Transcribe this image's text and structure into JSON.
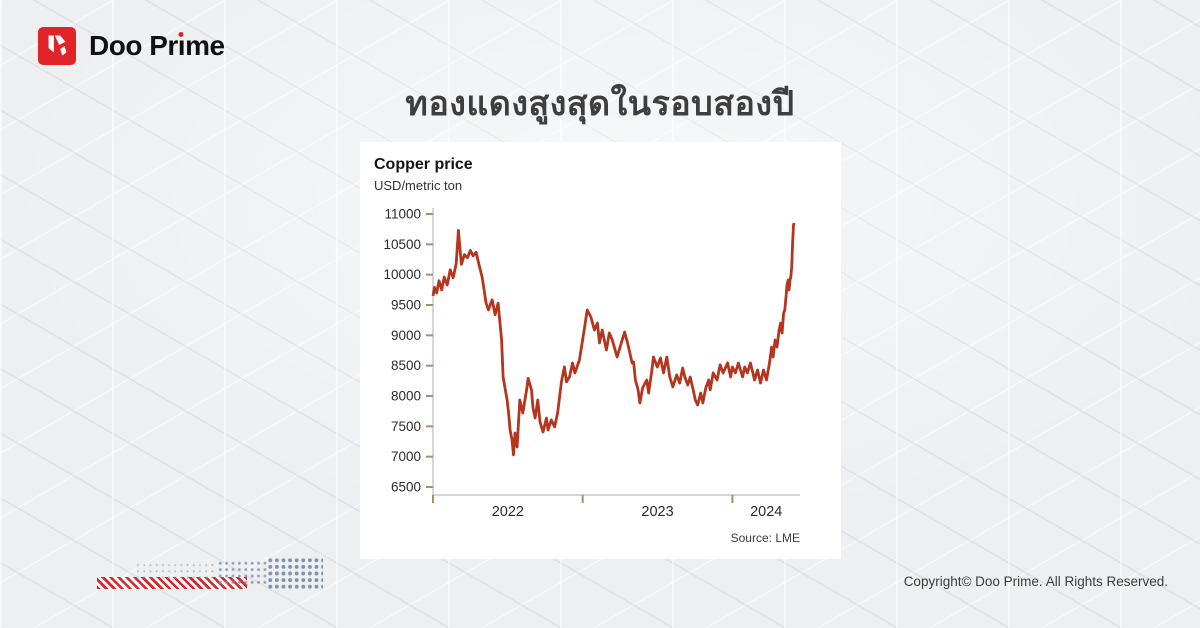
{
  "header": {
    "brand": "Doo Prime",
    "brand_left": "Doo Pr",
    "brand_i": "ı",
    "brand_right": "me",
    "logo_red": "#e02427"
  },
  "title": "ทองแดงสูงสุดในรอบสองปี",
  "footer": {
    "copyright": "Copyright© Doo Prime. All Rights Reserved."
  },
  "chart_data": {
    "type": "line",
    "title": "Copper price",
    "subtitle": "USD/metric ton",
    "source": "Source: LME",
    "legend": null,
    "grid": false,
    "line_color": "#b5351f",
    "axis_color": "#c6c6c6",
    "tick_color": "#b08a67",
    "label_color": "#2b2b2b",
    "xlim": [
      2022.0,
      2024.45
    ],
    "ylim": [
      6500,
      11000
    ],
    "x_ticks": [
      2022,
      2023,
      2024
    ],
    "x_tick_labels": [
      "2022",
      "2023",
      "2024"
    ],
    "y_ticks": [
      11000,
      10500,
      10000,
      9500,
      9000,
      8500,
      8000,
      7500,
      7000,
      6500
    ],
    "series": [
      {
        "name": "LME copper price (USD/metric ton)",
        "points": [
          [
            2022.0,
            9650
          ],
          [
            2022.01,
            9790
          ],
          [
            2022.025,
            9700
          ],
          [
            2022.04,
            9900
          ],
          [
            2022.058,
            9750
          ],
          [
            2022.075,
            9960
          ],
          [
            2022.095,
            9830
          ],
          [
            2022.115,
            10080
          ],
          [
            2022.135,
            9950
          ],
          [
            2022.155,
            10180
          ],
          [
            2022.17,
            10730
          ],
          [
            2022.19,
            10170
          ],
          [
            2022.21,
            10330
          ],
          [
            2022.23,
            10280
          ],
          [
            2022.25,
            10400
          ],
          [
            2022.268,
            10310
          ],
          [
            2022.288,
            10370
          ],
          [
            2022.308,
            10160
          ],
          [
            2022.328,
            9960
          ],
          [
            2022.34,
            9770
          ],
          [
            2022.355,
            9530
          ],
          [
            2022.37,
            9420
          ],
          [
            2022.395,
            9585
          ],
          [
            2022.415,
            9340
          ],
          [
            2022.435,
            9530
          ],
          [
            2022.458,
            8925
          ],
          [
            2022.468,
            8315
          ],
          [
            2022.495,
            7934
          ],
          [
            2022.505,
            7720
          ],
          [
            2022.515,
            7440
          ],
          [
            2022.528,
            7275
          ],
          [
            2022.538,
            7030
          ],
          [
            2022.548,
            7390
          ],
          [
            2022.562,
            7160
          ],
          [
            2022.58,
            7934
          ],
          [
            2022.6,
            7720
          ],
          [
            2022.625,
            8100
          ],
          [
            2022.635,
            8290
          ],
          [
            2022.658,
            8100
          ],
          [
            2022.668,
            7800
          ],
          [
            2022.682,
            7637
          ],
          [
            2022.7,
            7934
          ],
          [
            2022.715,
            7571
          ],
          [
            2022.735,
            7407
          ],
          [
            2022.758,
            7637
          ],
          [
            2022.768,
            7440
          ],
          [
            2022.79,
            7604
          ],
          [
            2022.812,
            7490
          ],
          [
            2022.832,
            7720
          ],
          [
            2022.858,
            8232
          ],
          [
            2022.878,
            8479
          ],
          [
            2022.892,
            8232
          ],
          [
            2022.912,
            8314
          ],
          [
            2022.932,
            8544
          ],
          [
            2022.948,
            8380
          ],
          [
            2022.978,
            8594
          ],
          [
            2023.01,
            9088
          ],
          [
            2023.03,
            9418
          ],
          [
            2023.055,
            9303
          ],
          [
            2023.078,
            9088
          ],
          [
            2023.098,
            9203
          ],
          [
            2023.112,
            8874
          ],
          [
            2023.13,
            9088
          ],
          [
            2023.158,
            8758
          ],
          [
            2023.178,
            9039
          ],
          [
            2023.198,
            8923
          ],
          [
            2023.23,
            8643
          ],
          [
            2023.258,
            8874
          ],
          [
            2023.28,
            9055
          ],
          [
            2023.3,
            8874
          ],
          [
            2023.33,
            8544
          ],
          [
            2023.34,
            8561
          ],
          [
            2023.352,
            8264
          ],
          [
            2023.37,
            8100
          ],
          [
            2023.382,
            7885
          ],
          [
            2023.4,
            8133
          ],
          [
            2023.428,
            8264
          ],
          [
            2023.44,
            8050
          ],
          [
            2023.462,
            8429
          ],
          [
            2023.472,
            8643
          ],
          [
            2023.498,
            8478
          ],
          [
            2023.52,
            8627
          ],
          [
            2023.54,
            8380
          ],
          [
            2023.562,
            8643
          ],
          [
            2023.582,
            8314
          ],
          [
            2023.602,
            8150
          ],
          [
            2023.628,
            8347
          ],
          [
            2023.648,
            8215
          ],
          [
            2023.668,
            8462
          ],
          [
            2023.682,
            8314
          ],
          [
            2023.702,
            8182
          ],
          [
            2023.718,
            8314
          ],
          [
            2023.738,
            8100
          ],
          [
            2023.752,
            7934
          ],
          [
            2023.768,
            7852
          ],
          [
            2023.788,
            8050
          ],
          [
            2023.802,
            7885
          ],
          [
            2023.822,
            8133
          ],
          [
            2023.842,
            8264
          ],
          [
            2023.852,
            8100
          ],
          [
            2023.872,
            8380
          ],
          [
            2023.898,
            8264
          ],
          [
            2023.918,
            8512
          ],
          [
            2023.938,
            8380
          ],
          [
            2023.968,
            8544
          ],
          [
            2023.988,
            8314
          ],
          [
            2024.0,
            8478
          ],
          [
            2024.02,
            8380
          ],
          [
            2024.04,
            8544
          ],
          [
            2024.068,
            8314
          ],
          [
            2024.082,
            8478
          ],
          [
            2024.1,
            8380
          ],
          [
            2024.12,
            8544
          ],
          [
            2024.148,
            8264
          ],
          [
            2024.168,
            8429
          ],
          [
            2024.188,
            8215
          ],
          [
            2024.208,
            8429
          ],
          [
            2024.228,
            8264
          ],
          [
            2024.248,
            8544
          ],
          [
            2024.262,
            8808
          ],
          [
            2024.272,
            8643
          ],
          [
            2024.285,
            8923
          ],
          [
            2024.298,
            8808
          ],
          [
            2024.312,
            9088
          ],
          [
            2024.322,
            9203
          ],
          [
            2024.332,
            9039
          ],
          [
            2024.342,
            9368
          ],
          [
            2024.35,
            9418
          ],
          [
            2024.358,
            9632
          ],
          [
            2024.365,
            9830
          ],
          [
            2024.372,
            9912
          ],
          [
            2024.378,
            9747
          ],
          [
            2024.385,
            9912
          ],
          [
            2024.39,
            9962
          ],
          [
            2024.396,
            10126
          ],
          [
            2024.402,
            10522
          ],
          [
            2024.408,
            10819
          ],
          [
            2024.412,
            10852
          ]
        ]
      }
    ]
  }
}
